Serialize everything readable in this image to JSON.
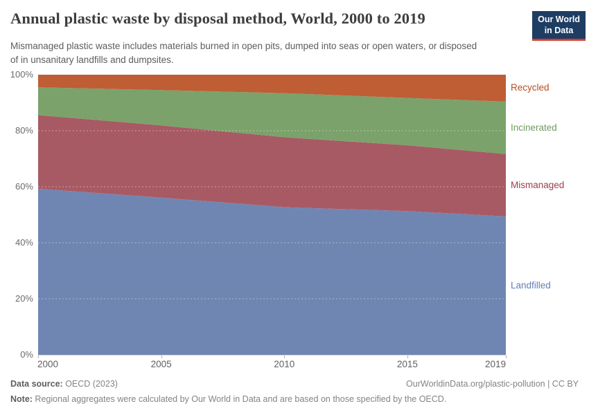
{
  "header": {
    "title": "Annual plastic waste by disposal method, World, 2000 to 2019",
    "subtitle": "Mismanaged plastic waste includes materials burned in open pits, dumped into seas or open waters, or disposed of in unsanitary landfills and dumpsites.",
    "logo": {
      "line1": "Our World",
      "line2": "in Data",
      "bg_color": "#1d3d63",
      "bar_color": "#d63e32"
    }
  },
  "chart_data": {
    "type": "area",
    "stacked": true,
    "relative": true,
    "unit": "%",
    "x": [
      2000,
      2005,
      2010,
      2015,
      2019
    ],
    "series": [
      {
        "name": "Landfilled",
        "color": "#7086b2",
        "label_color": "#627fb1",
        "values": [
          59.3,
          56.1,
          52.7,
          51.3,
          49.4
        ]
      },
      {
        "name": "Mismanaged",
        "color": "#a85a64",
        "label_color": "#9c3c4b",
        "values": [
          26.3,
          25.8,
          25.0,
          23.5,
          22.3
        ]
      },
      {
        "name": "Incinerated",
        "color": "#7ba26b",
        "label_color": "#6f9a5e",
        "values": [
          9.9,
          12.6,
          15.7,
          16.9,
          18.7
        ]
      },
      {
        "name": "Recycled",
        "color": "#bf5d35",
        "label_color": "#b14f1d",
        "values": [
          4.5,
          5.5,
          6.6,
          8.3,
          9.6
        ]
      }
    ],
    "ylim": [
      0,
      100
    ],
    "yticks": [
      0,
      20,
      40,
      60,
      80,
      100
    ],
    "ytick_format": "{}%",
    "xticks": [
      2000,
      2005,
      2010,
      2015,
      2019
    ],
    "grid": "dashed horizontal, on top of areas",
    "legend_position": "right, aligned to band midpoints"
  },
  "footer": {
    "datasource_label": "Data source:",
    "datasource_value": " OECD (2023)",
    "link": "OurWorldinData.org/plastic-pollution | CC BY",
    "note_label": "Note:",
    "note_value": " Regional aggregates were calculated by Our World in Data and are based on those specified by the OECD."
  }
}
